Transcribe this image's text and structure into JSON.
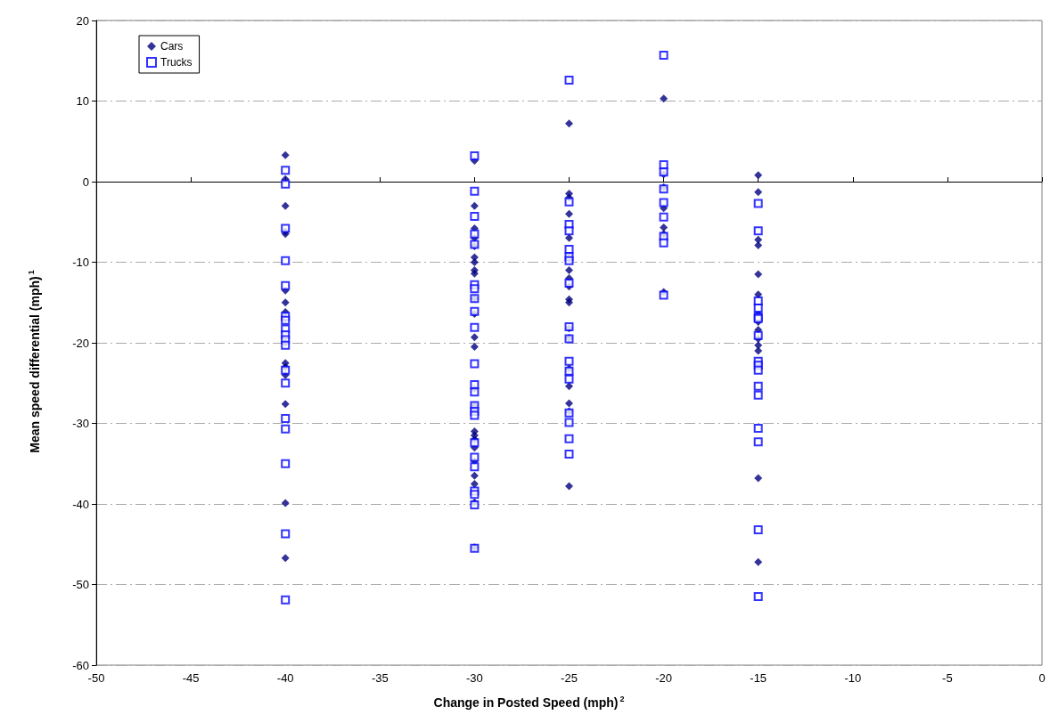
{
  "chart_data": {
    "type": "scatter",
    "xlabel": "Change in Posted Speed (mph)$^{2}$",
    "ylabel": "Mean speed differential (mph)$^{1}$",
    "xlim": [
      -50,
      0
    ],
    "xticks": [
      -50,
      -45,
      -40,
      -35,
      -30,
      -25,
      -20,
      -15,
      -10,
      -5,
      0
    ],
    "ylim": [
      -60,
      20
    ],
    "yticks": [
      -60,
      -50,
      -40,
      -30,
      -20,
      -10,
      0,
      10,
      20
    ],
    "grid": "y",
    "legend": "top left",
    "series": [
      {
        "name": "Cars",
        "color": "#000080",
        "marker": "diamond",
        "x": [
          -40,
          -40,
          -40,
          -40,
          -40,
          -40,
          -40,
          -40,
          -40,
          -40,
          -40,
          -40,
          -40,
          -40,
          -40,
          -40,
          -30,
          -30,
          -30,
          -30,
          -30,
          -30,
          -30,
          -30,
          -30,
          -30,
          -30,
          -30,
          -30,
          -30,
          -30,
          -30,
          -30,
          -30,
          -30,
          -30,
          -30,
          -30,
          -30,
          -30,
          -30,
          -25,
          -25,
          -25,
          -25,
          -25,
          -25,
          -25,
          -25,
          -25,
          -25,
          -25,
          -25,
          -25,
          -25,
          -25,
          -25,
          -25,
          -25,
          -20,
          -20,
          -20,
          -20,
          -20,
          -20,
          -20,
          -15,
          -15,
          -15,
          -15,
          -15,
          -15,
          -15,
          -15,
          -15,
          -15,
          -15,
          -15,
          -15,
          -15,
          -15
        ],
        "values": [
          3.3,
          0.3,
          -3,
          -6.2,
          -6.5,
          -13.5,
          -15,
          -16.2,
          -17,
          -20,
          -22.5,
          -23,
          -24,
          -27.6,
          -39.9,
          -46.7,
          2.6,
          -3,
          -5.8,
          -7,
          -8,
          -9.4,
          -10,
          -11,
          -11.4,
          -14.5,
          -16.4,
          -19.3,
          -20.5,
          -25.7,
          -27.8,
          -28.5,
          -31,
          -31.5,
          -32,
          -33,
          -34.7,
          -36.5,
          -37.5,
          -39.8,
          -45.4,
          7.2,
          -1.5,
          -2,
          -4,
          -7,
          -9.5,
          -11,
          -12,
          -13,
          -14.6,
          -15,
          -18.2,
          -19.4,
          -23.2,
          -25.4,
          -27.5,
          -28.5,
          -37.8,
          10.3,
          0.9,
          -0.7,
          -3.3,
          -5.7,
          -6.5,
          -13.7,
          0.8,
          -1.3,
          -7.2,
          -7.9,
          -11.5,
          -14,
          -16.5,
          -17.4,
          -18.4,
          -19.5,
          -20.3,
          -21,
          -22.5,
          -36.8,
          -47.2
        ]
      },
      {
        "name": "Trucks",
        "color": "#0000ff",
        "marker": "square",
        "x": [
          -40,
          -40,
          -40,
          -40,
          -40,
          -40,
          -40,
          -40,
          -40,
          -40,
          -40,
          -40,
          -40,
          -40,
          -40,
          -40,
          -40,
          -40,
          -30,
          -30,
          -30,
          -30,
          -30,
          -30,
          -30,
          -30,
          -30,
          -30,
          -30,
          -30,
          -30,
          -30,
          -30,
          -30,
          -30,
          -30,
          -30,
          -30,
          -30,
          -30,
          -30,
          -25,
          -25,
          -25,
          -25,
          -25,
          -25,
          -25,
          -25,
          -25,
          -25,
          -25,
          -25,
          -25,
          -25,
          -25,
          -25,
          -25,
          -20,
          -20,
          -20,
          -20,
          -20,
          -20,
          -20,
          -20,
          -20,
          -15,
          -15,
          -15,
          -15,
          -15,
          -15,
          -15,
          -15,
          -15,
          -15,
          -15,
          -15,
          -15,
          -15,
          -15,
          -15
        ],
        "values": [
          1.4,
          -0.3,
          -5.8,
          -9.8,
          -12.9,
          -16.7,
          -17.2,
          -18.3,
          -19,
          -19.6,
          -20.3,
          -23.4,
          -25,
          -29.4,
          -30.7,
          -35,
          -43.7,
          -51.9,
          3.2,
          -1.2,
          -4.3,
          -6.5,
          -7.8,
          -12.8,
          -13.3,
          -14.5,
          -16.1,
          -18.1,
          -22.6,
          -25.2,
          -26.1,
          -27.8,
          -28.5,
          -29,
          -32.4,
          -34.2,
          -35.4,
          -38.4,
          -38.8,
          -40.1,
          -45.5,
          12.6,
          -2.5,
          -5.3,
          -6.1,
          -8.4,
          -9.3,
          -9.8,
          -12.6,
          -18,
          -19.5,
          -22.3,
          -23.5,
          -24.5,
          -28.7,
          -29.9,
          -31.9,
          -33.8,
          15.7,
          2.1,
          1.2,
          -0.9,
          -2.6,
          -4.4,
          -6.8,
          -7.6,
          -14.1,
          -2.7,
          -6.1,
          -14.8,
          -15.7,
          -16.8,
          -17,
          -19.1,
          -22.3,
          -22.8,
          -23.4,
          -25.4,
          -26.5,
          -30.6,
          -32.3,
          -43.2,
          -51.5
        ]
      }
    ]
  }
}
